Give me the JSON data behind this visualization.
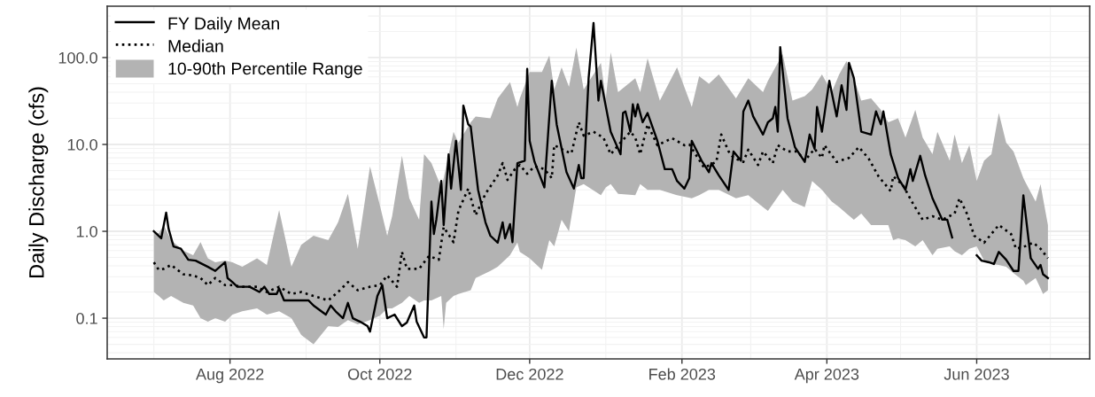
{
  "chart_data": {
    "type": "line",
    "ylabel": "Daily Discharge (cfs)",
    "log": "y",
    "grid": true,
    "legend": "top left",
    "xlim": [
      "2022-06-12",
      "2023-07-17"
    ],
    "ylim": [
      0.034,
      390
    ],
    "xticks": [
      {
        "value": "2022-08-01",
        "label": "Aug 2022"
      },
      {
        "value": "2022-10-01",
        "label": "Oct 2022"
      },
      {
        "value": "2022-12-01",
        "label": "Dec 2022"
      },
      {
        "value": "2023-02-01",
        "label": "Feb 2023"
      },
      {
        "value": "2023-04-01",
        "label": "Apr 2023"
      },
      {
        "value": "2023-06-01",
        "label": "Jun 2023"
      }
    ],
    "yticks": [
      {
        "value": 0.1,
        "label": "0.1"
      },
      {
        "value": 1,
        "label": "1.0"
      },
      {
        "value": 10,
        "label": "10.0"
      },
      {
        "value": 100,
        "label": "100.0"
      }
    ],
    "series": [
      {
        "name": "FY Daily Mean",
        "type": "line",
        "color": "#000000",
        "line_style": "solid",
        "x": [
          "2022-07-01",
          "2022-07-04",
          "2022-07-06",
          "2022-07-07",
          "2022-07-09",
          "2022-07-12",
          "2022-07-15",
          "2022-07-18",
          "2022-07-23",
          "2022-07-26",
          "2022-07-30",
          "2022-07-31",
          "2022-08-02",
          "2022-08-04",
          "2022-08-09",
          "2022-08-13",
          "2022-08-15",
          "2022-08-17",
          "2022-08-20",
          "2022-08-21",
          "2022-08-23",
          "2022-08-27",
          "2022-09-02",
          "2022-09-04",
          "2022-09-09",
          "2022-09-11",
          "2022-09-13",
          "2022-09-16",
          "2022-09-18",
          "2022-09-20",
          "2022-09-23",
          "2022-09-26",
          "2022-09-27",
          "2022-09-30",
          "2022-10-02",
          "2022-10-04",
          "2022-10-07",
          "2022-10-10",
          "2022-10-12",
          "2022-10-15",
          "2022-10-16",
          "2022-10-19",
          "2022-10-20",
          "2022-10-22",
          "2022-10-23",
          "2022-10-24",
          "2022-10-26",
          "2022-10-27",
          "2022-10-29",
          "2022-10-30",
          "2022-11-01",
          "2022-11-03",
          "2022-11-04",
          "2022-11-06",
          "2022-11-07",
          "2022-11-10",
          "2022-11-13",
          "2022-11-15",
          "2022-11-18",
          "2022-11-20",
          "2022-11-21",
          "2022-11-23",
          "2022-11-24",
          "2022-11-26",
          "2022-11-29",
          "2022-11-30",
          "2022-12-01",
          "2022-12-03",
          "2022-12-07",
          "2022-12-10",
          "2022-12-12",
          "2022-12-16",
          "2022-12-19",
          "2022-12-21",
          "2022-12-22",
          "2022-12-23",
          "2022-12-25",
          "2022-12-27",
          "2022-12-29",
          "2022-12-30",
          "2023-01-03",
          "2023-01-07",
          "2023-01-08",
          "2023-01-09",
          "2023-01-11",
          "2023-01-12",
          "2023-01-13",
          "2023-01-14",
          "2023-01-16",
          "2023-01-18",
          "2023-01-22",
          "2023-01-25",
          "2023-01-28",
          "2023-01-30",
          "2023-02-02",
          "2023-02-04",
          "2023-02-05",
          "2023-02-09",
          "2023-02-12",
          "2023-02-13",
          "2023-02-16",
          "2023-02-20",
          "2023-02-22",
          "2023-02-25",
          "2023-02-26",
          "2023-02-28",
          "2023-03-02",
          "2023-03-06",
          "2023-03-08",
          "2023-03-10",
          "2023-03-11",
          "2023-03-12",
          "2023-03-13",
          "2023-03-16",
          "2023-03-19",
          "2023-03-23",
          "2023-03-25",
          "2023-03-27",
          "2023-03-28",
          "2023-03-30",
          "2023-04-02",
          "2023-04-05",
          "2023-04-07",
          "2023-04-09",
          "2023-04-10",
          "2023-04-12",
          "2023-04-15",
          "2023-04-19",
          "2023-04-21",
          "2023-04-23",
          "2023-04-24",
          "2023-04-27",
          "2023-04-30",
          "2023-05-03",
          "2023-05-05",
          "2023-05-06",
          "2023-05-09",
          "2023-05-11",
          "2023-05-14",
          "2023-05-18",
          "2023-05-20",
          "2023-05-22",
          "2023-05-27",
          "2023-06-01",
          "2023-06-03",
          "2023-06-06",
          "2023-06-08",
          "2023-06-10",
          "2023-06-13",
          "2023-06-16",
          "2023-06-18",
          "2023-06-20",
          "2023-06-22",
          "2023-06-23",
          "2023-06-26",
          "2023-06-27",
          "2023-06-28",
          "2023-06-30"
        ],
        "values": [
          1.0,
          0.83,
          1.64,
          1.07,
          0.67,
          0.63,
          0.47,
          0.46,
          0.39,
          0.35,
          0.44,
          0.29,
          0.26,
          0.23,
          0.23,
          0.2,
          0.23,
          0.19,
          0.19,
          0.22,
          0.16,
          0.16,
          0.16,
          0.14,
          0.11,
          0.14,
          0.12,
          0.1,
          0.15,
          0.1,
          0.091,
          0.081,
          0.07,
          0.18,
          0.24,
          0.1,
          0.11,
          0.081,
          0.089,
          0.14,
          0.091,
          0.06,
          0.06,
          2.2,
          0.93,
          1.36,
          3.8,
          1.18,
          7.7,
          3.1,
          11,
          3.0,
          28,
          17,
          16,
          3.0,
          1.27,
          0.89,
          0.74,
          1.27,
          0.83,
          1.21,
          0.75,
          6.1,
          6.5,
          74,
          11,
          6.3,
          3.2,
          54,
          17,
          4.8,
          3.1,
          5.8,
          4.1,
          4.1,
          58,
          250,
          32,
          54,
          14,
          7.7,
          23,
          24,
          14,
          29,
          21,
          29,
          18,
          23,
          11,
          5.2,
          5.2,
          3.8,
          3.1,
          4.1,
          11,
          6.5,
          4.8,
          6.1,
          4.4,
          3.0,
          8.3,
          6.5,
          24,
          32,
          21,
          13,
          18,
          20,
          27,
          14,
          132,
          20,
          9.3,
          6.3,
          13,
          8.9,
          27,
          14,
          54,
          21,
          48,
          25,
          87,
          58,
          14,
          13,
          24,
          17,
          24,
          7.7,
          4.1,
          3.0,
          5.2,
          3.8,
          7.4,
          4.4,
          2.4,
          1.36,
          1.36,
          0.85,
          null,
          0.53,
          0.46,
          0.44,
          0.42,
          0.58,
          0.47,
          0.35,
          0.35,
          2.6,
          0.85,
          0.49,
          0.37,
          0.41,
          0.32,
          0.29
        ]
      },
      {
        "name": "Median",
        "color": "#000000",
        "line_style": "dotted",
        "x": [
          "2022-07-01",
          "2022-07-03",
          "2022-07-05",
          "2022-07-08",
          "2022-07-13",
          "2022-07-17",
          "2022-07-20",
          "2022-07-23",
          "2022-07-26",
          "2022-07-30",
          "2022-08-02",
          "2022-08-06",
          "2022-08-12",
          "2022-08-16",
          "2022-08-21",
          "2022-08-26",
          "2022-08-30",
          "2022-09-04",
          "2022-09-10",
          "2022-09-14",
          "2022-09-18",
          "2022-09-22",
          "2022-09-27",
          "2022-10-01",
          "2022-10-04",
          "2022-10-08",
          "2022-10-10",
          "2022-10-12",
          "2022-10-17",
          "2022-10-21",
          "2022-10-25",
          "2022-10-27",
          "2022-10-31",
          "2022-11-02",
          "2022-11-06",
          "2022-11-09",
          "2022-11-13",
          "2022-11-18",
          "2022-11-20",
          "2022-11-22",
          "2022-11-25",
          "2022-11-27",
          "2022-11-30",
          "2022-12-03",
          "2022-12-07",
          "2022-12-10",
          "2022-12-11",
          "2022-12-16",
          "2022-12-18",
          "2022-12-21",
          "2022-12-23",
          "2022-12-27",
          "2022-12-31",
          "2023-01-03",
          "2023-01-07",
          "2023-01-11",
          "2023-01-13",
          "2023-01-15",
          "2023-01-18",
          "2023-01-22",
          "2023-01-28",
          "2023-02-02",
          "2023-02-04",
          "2023-02-10",
          "2023-02-15",
          "2023-02-17",
          "2023-02-20",
          "2023-02-22",
          "2023-02-26",
          "2023-02-28",
          "2023-03-04",
          "2023-03-06",
          "2023-03-10",
          "2023-03-12",
          "2023-03-16",
          "2023-03-20",
          "2023-03-23",
          "2023-03-27",
          "2023-03-30",
          "2023-03-31",
          "2023-04-05",
          "2023-04-10",
          "2023-04-14",
          "2023-04-18",
          "2023-04-22",
          "2023-04-27",
          "2023-04-28",
          "2023-05-02",
          "2023-05-03",
          "2023-05-06",
          "2023-05-10",
          "2023-05-14",
          "2023-05-18",
          "2023-05-23",
          "2023-05-25",
          "2023-05-28",
          "2023-05-31",
          "2023-06-04",
          "2023-06-10",
          "2023-06-15",
          "2023-06-17",
          "2023-06-20",
          "2023-06-24",
          "2023-06-27",
          "2023-06-30"
        ],
        "values": [
          0.44,
          0.36,
          0.37,
          0.41,
          0.32,
          0.31,
          0.29,
          0.24,
          0.29,
          0.24,
          0.24,
          0.23,
          0.23,
          0.2,
          0.23,
          0.19,
          0.2,
          0.18,
          0.16,
          0.2,
          0.26,
          0.21,
          0.23,
          0.24,
          0.31,
          0.23,
          0.58,
          0.37,
          0.37,
          0.52,
          0.47,
          1.12,
          0.75,
          1.72,
          3.1,
          1.53,
          2.7,
          4.4,
          6.1,
          3.9,
          5.2,
          5.8,
          4.6,
          5.6,
          5.2,
          4.1,
          9.8,
          8.3,
          7.9,
          18,
          12.6,
          14,
          12,
          7.7,
          10.5,
          14,
          12,
          7.7,
          17,
          9.8,
          11.8,
          9.8,
          10,
          5.4,
          6.3,
          13,
          8.3,
          7.0,
          6.3,
          8.7,
          5.8,
          8.3,
          6.1,
          9.8,
          8.3,
          8.3,
          6.5,
          8.9,
          7.0,
          9.8,
          6.3,
          7.0,
          9.3,
          6.9,
          4.3,
          2.9,
          4.3,
          3.4,
          3.0,
          2.1,
          1.36,
          1.49,
          1.36,
          1.6,
          2.4,
          1.6,
          0.89,
          0.74,
          1.18,
          0.93,
          0.63,
          0.66,
          0.74,
          0.63,
          0.49
        ]
      },
      {
        "name": "10-90th Percentile Range",
        "type": "area",
        "color": "#b3b3b3",
        "x": [
          "2022-07-01",
          "2022-07-03",
          "2022-07-05",
          "2022-07-08",
          "2022-07-13",
          "2022-07-17",
          "2022-07-20",
          "2022-07-23",
          "2022-07-26",
          "2022-07-30",
          "2022-08-02",
          "2022-08-06",
          "2022-08-12",
          "2022-08-16",
          "2022-08-21",
          "2022-08-26",
          "2022-08-30",
          "2022-09-04",
          "2022-09-10",
          "2022-09-14",
          "2022-09-18",
          "2022-09-22",
          "2022-09-27",
          "2022-10-01",
          "2022-10-04",
          "2022-10-06",
          "2022-10-10",
          "2022-10-13",
          "2022-10-17",
          "2022-10-19",
          "2022-10-22",
          "2022-10-26",
          "2022-10-27",
          "2022-10-28",
          "2022-10-31",
          "2022-11-02",
          "2022-11-07",
          "2022-11-09",
          "2022-11-15",
          "2022-11-18",
          "2022-11-23",
          "2022-11-26",
          "2022-11-27",
          "2022-12-01",
          "2022-12-06",
          "2022-12-09",
          "2022-12-11",
          "2022-12-14",
          "2022-12-17",
          "2022-12-20",
          "2022-12-23",
          "2022-12-30",
          "2023-01-01",
          "2023-01-03",
          "2023-01-06",
          "2023-01-13",
          "2023-01-15",
          "2023-01-18",
          "2023-01-23",
          "2023-01-30",
          "2023-02-05",
          "2023-02-08",
          "2023-02-12",
          "2023-02-16",
          "2023-02-23",
          "2023-02-28",
          "2023-03-06",
          "2023-03-08",
          "2023-03-14",
          "2023-03-18",
          "2023-03-23",
          "2023-03-26",
          "2023-03-30",
          "2023-04-03",
          "2023-04-06",
          "2023-04-09",
          "2023-04-12",
          "2023-04-15",
          "2023-04-19",
          "2023-04-23",
          "2023-04-26",
          "2023-04-28",
          "2023-04-30",
          "2023-05-03",
          "2023-05-07",
          "2023-05-10",
          "2023-05-14",
          "2023-05-16",
          "2023-05-21",
          "2023-05-23",
          "2023-05-26",
          "2023-05-29",
          "2023-06-01",
          "2023-06-04",
          "2023-06-07",
          "2023-06-10",
          "2023-06-13",
          "2023-06-16",
          "2023-06-20",
          "2023-06-21",
          "2023-06-25",
          "2023-06-27",
          "2023-06-28",
          "2023-06-30"
        ],
        "values": [
          null,
          null,
          null,
          null,
          null,
          null,
          null,
          null,
          null,
          null,
          null,
          null,
          null,
          null,
          null,
          null,
          null,
          null,
          null,
          null,
          null,
          null,
          null,
          null,
          null,
          null,
          null,
          null,
          null,
          null,
          null,
          null,
          null,
          null,
          null,
          null,
          null,
          null,
          null,
          null,
          null,
          null,
          null,
          null,
          null,
          null,
          null,
          null,
          null,
          null,
          null,
          null,
          null,
          null,
          null,
          null,
          null,
          null,
          null,
          null,
          null,
          null,
          null,
          null,
          null,
          null,
          null,
          null,
          null,
          null,
          null,
          null,
          null,
          null,
          null,
          null,
          null,
          null,
          null,
          null,
          null,
          null,
          null,
          null,
          null,
          null,
          null,
          null,
          null,
          null,
          null,
          null,
          null,
          null,
          null,
          null,
          null,
          null,
          null,
          null,
          null,
          null,
          null,
          null
        ],
        "upper": [
          1.0,
          0.95,
          1.18,
          0.79,
          0.6,
          0.53,
          0.75,
          0.49,
          0.44,
          0.46,
          0.44,
          0.39,
          0.49,
          0.41,
          1.76,
          0.39,
          0.7,
          0.89,
          0.79,
          1.27,
          2.7,
          0.63,
          5.6,
          2.0,
          0.89,
          1.49,
          7.4,
          2.4,
          1.36,
          7.7,
          6.1,
          3.2,
          4.1,
          5.6,
          14,
          10.5,
          18,
          21,
          20,
          34,
          52,
          27,
          34,
          68,
          68,
          105,
          43,
          77,
          46,
          130,
          43,
          87,
          34,
          115,
          40,
          58,
          40,
          98,
          32,
          77,
          27,
          61,
          50,
          64,
          34,
          58,
          40,
          54,
          110,
          32,
          36,
          43,
          64,
          40,
          64,
          91,
          58,
          32,
          34,
          25,
          18,
          19,
          20,
          12,
          25,
          12,
          7.7,
          14,
          6.5,
          13,
          6.1,
          9.8,
          3.8,
          6.5,
          7.7,
          23,
          10.5,
          8.3,
          4.1,
          3.6,
          2.2,
          3.5,
          2.4,
          1.18
        ],
        "lower": [
          0.2,
          0.18,
          0.16,
          0.18,
          0.15,
          0.14,
          0.1,
          0.091,
          0.1,
          0.091,
          0.11,
          0.12,
          0.13,
          0.11,
          0.12,
          0.1,
          0.064,
          0.05,
          0.081,
          0.079,
          0.095,
          0.085,
          0.095,
          0.107,
          0.13,
          0.13,
          0.15,
          0.18,
          0.15,
          0.16,
          0.16,
          0.18,
          0.075,
          0.15,
          0.18,
          0.19,
          0.21,
          0.29,
          0.35,
          0.39,
          0.53,
          0.74,
          0.58,
          0.49,
          0.36,
          0.79,
          0.67,
          1.36,
          1.0,
          3.2,
          3.5,
          2.6,
          3.2,
          3.5,
          2.7,
          2.6,
          3.5,
          3.0,
          3.0,
          2.6,
          2.4,
          2.6,
          3.0,
          3.0,
          2.4,
          2.6,
          1.9,
          1.72,
          3.0,
          2.2,
          1.9,
          3.8,
          3.0,
          2.2,
          1.9,
          1.6,
          1.36,
          1.6,
          1.18,
          1.18,
          1.18,
          0.79,
          0.83,
          0.79,
          0.67,
          0.79,
          0.53,
          0.63,
          0.67,
          0.59,
          0.53,
          0.63,
          0.67,
          0.46,
          0.42,
          0.41,
          0.39,
          0.33,
          0.27,
          0.24,
          0.29,
          0.22,
          0.19,
          0.21
        ]
      }
    ]
  }
}
